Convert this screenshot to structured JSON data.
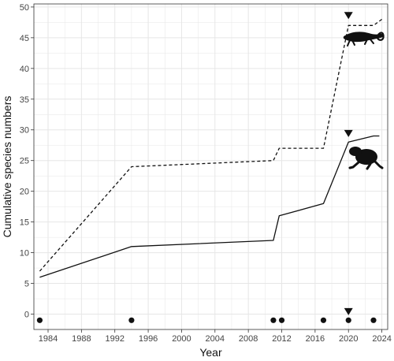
{
  "chart_data": {
    "type": "line",
    "xlabel": "Year",
    "ylabel": "Cumulative species numbers",
    "xlim": [
      1982.3,
      2024.7
    ],
    "ylim": [
      -2.5,
      50.5
    ],
    "grid": true,
    "x_ticks": [
      1984,
      1988,
      1992,
      1996,
      2000,
      2004,
      2008,
      2012,
      2016,
      2020,
      2024
    ],
    "y_ticks": [
      0,
      5,
      10,
      15,
      20,
      25,
      30,
      35,
      40,
      45,
      50
    ],
    "series": [
      {
        "style": "dashed",
        "icon": "salamander-silhouette",
        "points": [
          [
            1983,
            7
          ],
          [
            1994,
            24
          ],
          [
            2011,
            25
          ],
          [
            2011.7,
            27
          ],
          [
            2017,
            27
          ],
          [
            2020,
            47
          ],
          [
            2023,
            47
          ],
          [
            2024,
            48
          ]
        ]
      },
      {
        "style": "solid",
        "icon": "frog-silhouette",
        "points": [
          [
            1983,
            6
          ],
          [
            1994,
            11
          ],
          [
            2011,
            12
          ],
          [
            2011.7,
            16
          ],
          [
            2017,
            18
          ],
          [
            2020,
            28
          ],
          [
            2023,
            29
          ],
          [
            2023.7,
            29
          ]
        ]
      }
    ],
    "event_points": {
      "y": -1,
      "x": [
        1983,
        1994,
        2011,
        2012,
        2017,
        2020,
        2023
      ]
    },
    "markers": [
      {
        "shape": "down-triangle",
        "x": 2020,
        "y": 48.6
      },
      {
        "shape": "down-triangle",
        "x": 2020,
        "y": 29.4
      },
      {
        "shape": "down-triangle",
        "x": 2020,
        "y": 0.4
      }
    ],
    "colors": {
      "line": "#111111",
      "grid": "#e6e6e6",
      "panel_border": "#333333"
    }
  }
}
